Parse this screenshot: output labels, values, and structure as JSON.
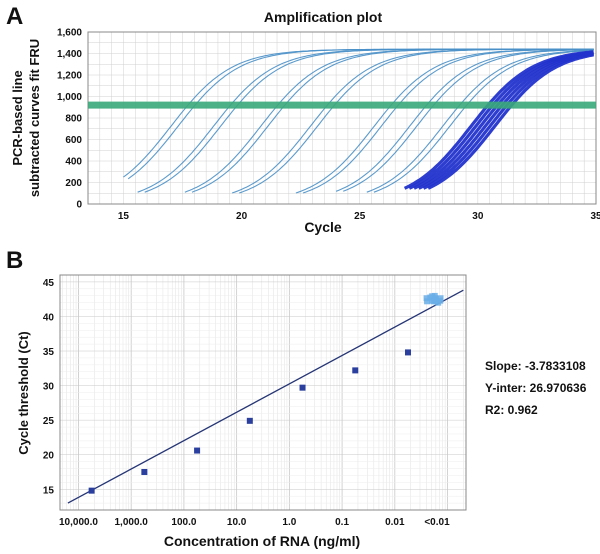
{
  "panel_a": {
    "letter": "A",
    "title": "Amplification plot",
    "xlabel": "Cycle",
    "ylabel_line1": "PCR-based line",
    "ylabel_line2": "subtracted curves fit FRU",
    "colors": {
      "curve": "#4a90c8",
      "curve_light": "#8fbfe6",
      "dense": "#2233cc",
      "threshold": "#3aa87a",
      "grid": "#d0d0d0",
      "frame": "#888888"
    }
  },
  "panel_b": {
    "letter": "B",
    "xlabel": "Concentration of RNA (ng/ml)",
    "ylabel": "Cycle threshold (Ct)",
    "stats": {
      "slope": "Slope: -3.7833108",
      "yinter": "Y-inter: 26.970636",
      "r2": "R2: 0.962"
    },
    "colors": {
      "point": "#2a3f9e",
      "fit": "#253575",
      "undetermined": "#6aaee8"
    }
  },
  "chart_data": [
    {
      "type": "line",
      "title": "Amplification plot",
      "xlabel": "Cycle",
      "ylabel": "PCR-based line subtracted curves fit FRU",
      "xlim": [
        13.5,
        35
      ],
      "ylim": [
        0,
        1600
      ],
      "x_ticks": [
        15,
        20,
        25,
        30,
        35
      ],
      "y_ticks": [
        0,
        200,
        400,
        600,
        800,
        1000,
        1200,
        1400,
        1600
      ],
      "y_tick_labels": [
        "0",
        "200",
        "400",
        "600",
        "800",
        "1,000",
        "1,200",
        "1,400",
        "1,600"
      ],
      "threshold": 920,
      "grid": true,
      "curves": [
        {
          "midpoint": 17.0,
          "start": 15.0,
          "group": "light"
        },
        {
          "midpoint": 17.3,
          "start": 15.2,
          "group": "light"
        },
        {
          "midpoint": 18.8,
          "start": 15.6,
          "group": "light"
        },
        {
          "midpoint": 19.1,
          "start": 15.9,
          "group": "light"
        },
        {
          "midpoint": 20.8,
          "start": 17.6,
          "group": "light"
        },
        {
          "midpoint": 21.1,
          "start": 17.9,
          "group": "light"
        },
        {
          "midpoint": 22.9,
          "start": 19.6,
          "group": "light"
        },
        {
          "midpoint": 23.2,
          "start": 19.9,
          "group": "light"
        },
        {
          "midpoint": 25.6,
          "start": 22.3,
          "group": "light"
        },
        {
          "midpoint": 25.9,
          "start": 22.6,
          "group": "light"
        },
        {
          "midpoint": 27.1,
          "start": 24.0,
          "group": "light"
        },
        {
          "midpoint": 27.4,
          "start": 24.3,
          "group": "light"
        },
        {
          "midpoint": 28.5,
          "start": 25.3,
          "group": "light"
        },
        {
          "midpoint": 28.8,
          "start": 25.6,
          "group": "light"
        },
        {
          "midpoint": 29.7,
          "start": 26.9,
          "group": "dense"
        },
        {
          "midpoint": 29.9,
          "start": 27.1,
          "group": "dense"
        },
        {
          "midpoint": 30.1,
          "start": 27.3,
          "group": "dense"
        },
        {
          "midpoint": 30.3,
          "start": 27.5,
          "group": "dense"
        },
        {
          "midpoint": 30.5,
          "start": 27.7,
          "group": "dense"
        },
        {
          "midpoint": 30.7,
          "start": 27.9,
          "group": "dense"
        }
      ],
      "plateau": 1440,
      "steepness": 0.78
    },
    {
      "type": "scatter",
      "xlabel": "Concentration of RNA (ng/ml)",
      "ylabel": "Cycle threshold (Ct)",
      "categories": [
        "10,000.0",
        "1,000.0",
        "100.0",
        "10.0",
        "1.0",
        "0.1",
        "0.01",
        "<0.01"
      ],
      "x_positions": [
        0,
        1,
        2,
        3,
        4,
        5,
        6,
        6.8
      ],
      "ylim": [
        12,
        46
      ],
      "y_ticks": [
        15,
        20,
        25,
        30,
        35,
        40,
        45
      ],
      "grid": true,
      "points": [
        {
          "x": 0.25,
          "y": 14.8
        },
        {
          "x": 1.25,
          "y": 17.5
        },
        {
          "x": 2.25,
          "y": 20.6
        },
        {
          "x": 3.25,
          "y": 24.9
        },
        {
          "x": 4.25,
          "y": 29.7
        },
        {
          "x": 5.25,
          "y": 32.2
        },
        {
          "x": 6.25,
          "y": 34.8
        }
      ],
      "undetermined_cluster": {
        "x": 6.75,
        "y": 42.5
      },
      "fit_line": {
        "x0": -0.2,
        "y0": 13.0,
        "x1": 7.3,
        "y1": 43.8
      }
    }
  ]
}
